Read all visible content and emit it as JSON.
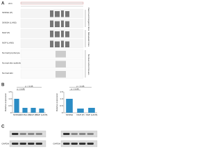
{
  "header": {
    "genome": "chr1"
  },
  "panel_a": {
    "label": "A",
    "tracks": [
      "SKNSH (P)",
      "SKNSH (LAN5)",
      "NGP (P)",
      "NGP (LAN5)",
      "Normal lymphocyte",
      "Normal skin epithelia",
      "Normal skin"
    ],
    "groups": [
      "Parent and isogenic lines",
      "Metastatic lines",
      "Normal control tissues"
    ]
  },
  "panel_b": {
    "label": "B",
    "charts": [
      {
        "y_label": "Relative expression",
        "categories": [
          "SKNSH",
          "SKNSH (P)",
          "NGP (P)",
          "NGP (LAN5)"
        ],
        "values": [
          1,
          0.35,
          0.35,
          0.3
        ],
        "p_labels": [
          "p < 0.05",
          "p < 0.05"
        ],
        "ylim": [
          0,
          1.5
        ],
        "yticks": [
          0,
          0.5,
          {
            "value": 1,
            "label": "1.0"
          },
          1.5
        ]
      },
      {
        "y_label": "Relative expression",
        "categories": [
          "SKNSH",
          "NGP (P)",
          "NGP (LAN5)"
        ],
        "values": [
          1,
          0.3,
          0.35
        ],
        "p_labels": [
          "p < 0.05",
          "p < 0.05"
        ],
        "ylim": [
          0,
          1.5
        ],
        "yticks": [
          0,
          0.5,
          {
            "value": 1,
            "label": "1.0"
          },
          1.5
        ]
      }
    ]
  },
  "panel_c": {
    "label": "C",
    "blot_labels": [
      "GAPDH",
      "GAPDH"
    ]
  }
}
